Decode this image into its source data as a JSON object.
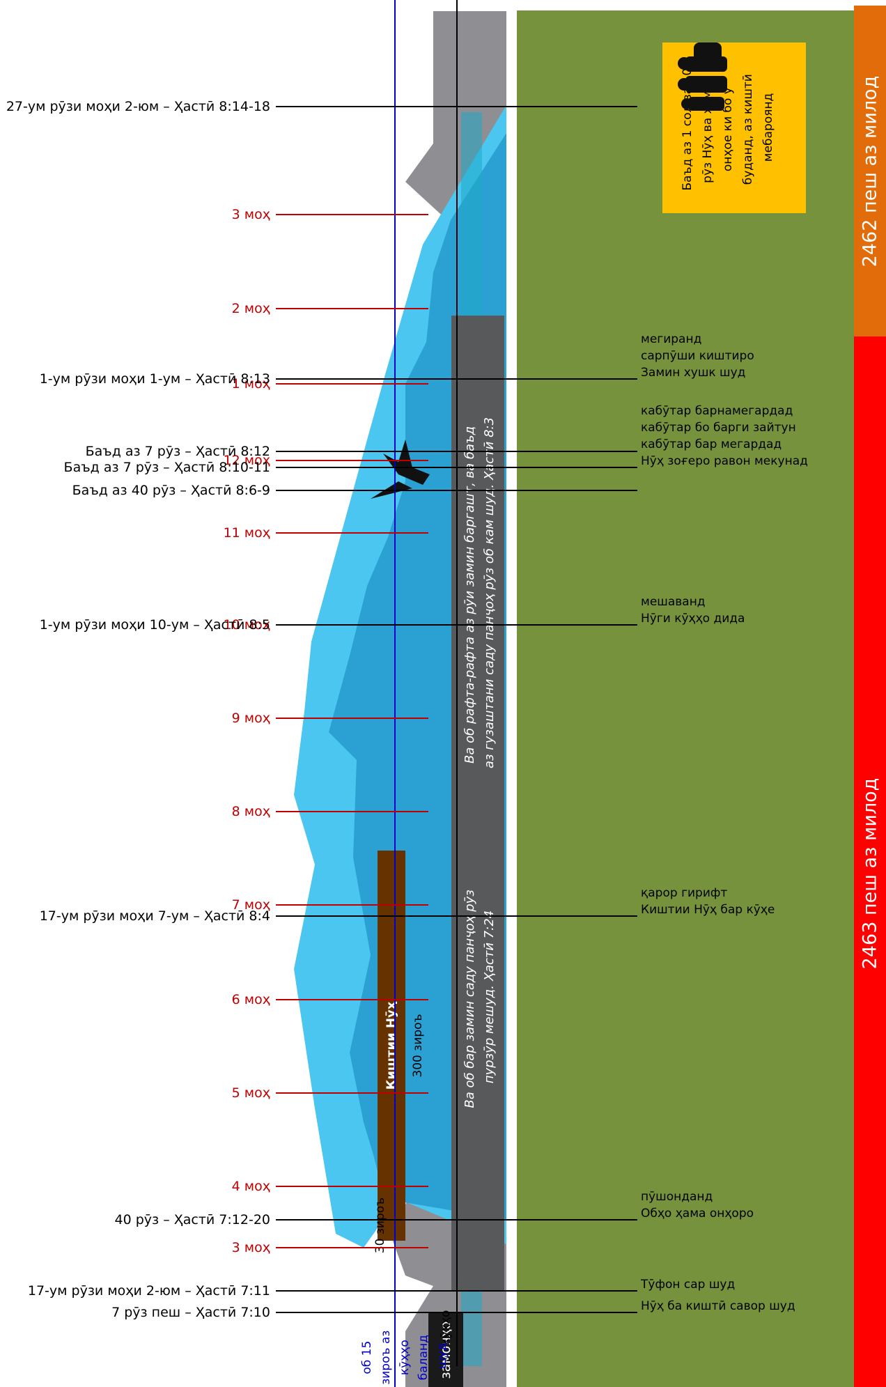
{
  "eras": {
    "upper": "2462 пеш аз милод",
    "lower": "2463 пеш аз милод"
  },
  "month_labels": [
    "3 моҳ",
    "4 моҳ",
    "5 моҳ",
    "6 моҳ",
    "7 моҳ",
    "8 моҳ",
    "9 моҳ",
    "10 моҳ",
    "11 моҳ",
    "12 моҳ",
    "1 моҳ",
    "2 моҳ",
    "3 моҳ"
  ],
  "day_labels": [
    "7 рӯз пеш – Ҳастӣ 7:10",
    "17-ум рӯзи моҳи 2-юм – Ҳастӣ 7:11",
    "40 рӯз – Ҳастӣ 7:12-20",
    "17-ум рӯзи моҳи 7-ум – Ҳастӣ 8:4",
    "1-ум рӯзи моҳи 10-ум – Ҳастӣ 8:5",
    "Баъд аз 40 рӯз – Ҳастӣ 8:6-9",
    "Баъд аз 7 рӯз – Ҳастӣ 8:10-11",
    "Баъд аз 7 рӯз – Ҳастӣ 8:12",
    "1-ум рӯзи моҳи 1-ум – Ҳастӣ 8:13",
    "27-ум рӯзи моҳи 2-юм – Ҳастӣ 8:14-18"
  ],
  "events": [
    [
      "Нӯҳ ба киштӣ савор шуд"
    ],
    [
      "Тӯфон сар шуд"
    ],
    [
      "Обҳо ҳама онҳоро",
      "пӯшонданд"
    ],
    [
      "Киштии Нӯҳ бар кӯҳе",
      "қарор гирифт"
    ],
    [
      "Нӯги кӯҳҳо дида",
      "мешаванд"
    ],
    [
      "Нӯҳ зоғеро равон мекунад",
      "кабӯтар бар мегардад",
      "кабӯтар бо барги зайтун",
      "кабӯтар барнамегардад"
    ],
    [
      "Замин хушк шуд",
      "сарпӯши киштиро",
      "мегиранд"
    ]
  ],
  "quote_first": [
    "Ва об бар замин саду панҷоҳ рӯз",
    "пурзӯр мешуд. Ҳастӣ 7:24"
  ],
  "quote_second": [
    "Ва об рафта-рафта аз рӯи замин баргашт, ва баъд",
    "аз гузаштани саду панҷоҳ рӯз об кам шуд. Ҳастӣ 8:3"
  ],
  "note": [
    "Баъд аз 1 сол ва 10",
    "рӯз Нӯҳ ва ҳамаи",
    "онҳое ки бо ӯ",
    "буданд, аз киштӣ",
    "мебароянд"
  ],
  "ark": {
    "title": "Киштии Нӯҳ",
    "length": "300 зироъ",
    "height": "30 зироъ"
  },
  "left_labels": {
    "times": "замонҳо",
    "mountains": "кӯҳҳо",
    "water": [
      "об 15",
      "зироъ аз",
      "кӯҳҳо",
      "баланд",
      "шуд"
    ]
  },
  "colors": {
    "era_upper": "#e36c0a",
    "era_lower": "#ff0000",
    "ground": "#76923c",
    "mountain": "#8f8f93",
    "water_light": "#4ac6f0",
    "water_dark": "#2ba1d3",
    "quote_box": "#58595b",
    "note_box": "#ffc000",
    "ark": "#663300",
    "month_line": "#c00000",
    "peak_line": "#0000cc"
  }
}
